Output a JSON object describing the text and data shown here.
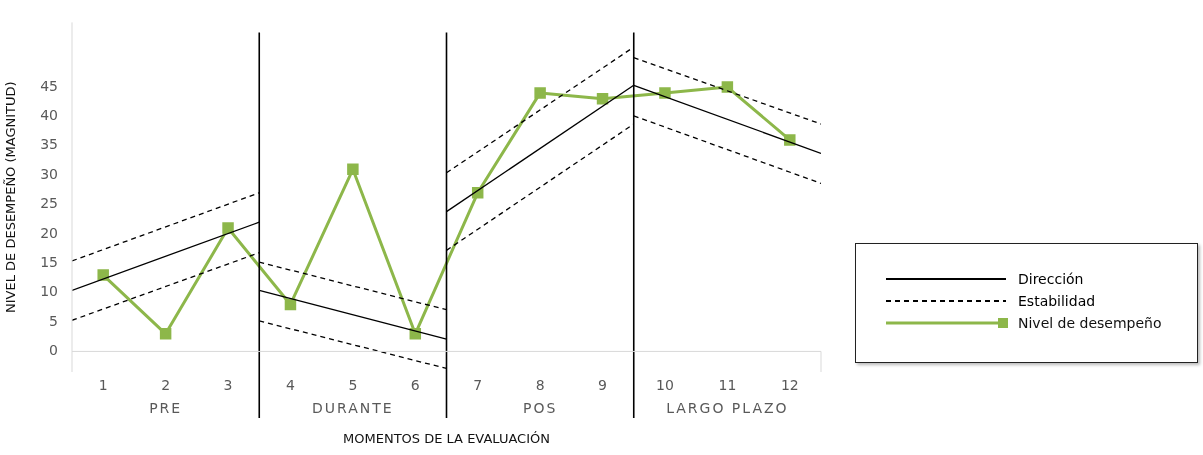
{
  "chart_data": {
    "type": "line",
    "xlabel": "MOMENTOS DE LA EVALUACIÓN",
    "ylabel": "NIVEL DE DESEMPEÑO (MAGNITUD)",
    "xlim": [
      0.5,
      12.5
    ],
    "xticks": [
      1,
      2,
      3,
      4,
      5,
      6,
      7,
      8,
      9,
      10,
      11,
      12
    ],
    "ylim": [
      -3.5,
      56
    ],
    "yticks": [
      0,
      5,
      10,
      15,
      20,
      25,
      30,
      35,
      40,
      45
    ],
    "grid": false,
    "legend": "right",
    "series": [
      {
        "name": "Dirección",
        "color": "#000000",
        "marker": "none",
        "line_style": "solid",
        "x": [
          0.5,
          3.5
        ],
        "values": [
          10.4,
          22
        ]
      },
      {
        "color": "#000000",
        "marker": "none",
        "line_style": "solid",
        "x": [
          3.5,
          6.5
        ],
        "values": [
          10.4,
          2.1
        ]
      },
      {
        "color": "#000000",
        "marker": "none",
        "line_style": "solid",
        "x": [
          6.5,
          9.5
        ],
        "values": [
          23.8,
          45.3
        ]
      },
      {
        "color": "#000000",
        "marker": "none",
        "line_style": "solid",
        "x": [
          9.5,
          12.5
        ],
        "values": [
          45.3,
          33.7
        ]
      },
      {
        "name": "Estabilidad",
        "color": "#000000",
        "marker": "none",
        "line_style": "dashed",
        "x": [
          0.5,
          3.5
        ],
        "values": [
          15.4,
          27
        ]
      },
      {
        "color": "#000000",
        "marker": "none",
        "line_style": "dashed",
        "x": [
          0.5,
          3.5
        ],
        "values": [
          5.3,
          16.8
        ]
      },
      {
        "color": "#000000",
        "marker": "none",
        "line_style": "dashed",
        "x": [
          3.5,
          6.5
        ],
        "values": [
          15.2,
          7.1
        ]
      },
      {
        "color": "#000000",
        "marker": "none",
        "line_style": "dashed",
        "x": [
          3.5,
          6.5
        ],
        "values": [
          5.2,
          -2.9
        ]
      },
      {
        "color": "#000000",
        "marker": "none",
        "line_style": "dashed",
        "x": [
          6.5,
          9.5
        ],
        "values": [
          30.4,
          51.8
        ]
      },
      {
        "color": "#000000",
        "marker": "none",
        "line_style": "dashed",
        "x": [
          6.5,
          9.5
        ],
        "values": [
          17.2,
          38.7
        ]
      },
      {
        "color": "#000000",
        "marker": "none",
        "line_style": "dashed",
        "x": [
          9.5,
          12.5
        ],
        "values": [
          50,
          38.7
        ]
      },
      {
        "color": "#000000",
        "marker": "none",
        "line_style": "dashed",
        "x": [
          9.5,
          12.5
        ],
        "values": [
          40.1,
          28.6
        ]
      },
      {
        "name": "Nivel de desempeño",
        "color": "#8db74a",
        "marker": "square",
        "line_style": "solid",
        "x": [
          1,
          2,
          3,
          4,
          5,
          6,
          7,
          8,
          9,
          10,
          11,
          12
        ],
        "values": [
          13,
          3,
          21,
          8,
          31,
          3,
          27,
          44,
          43,
          44,
          45,
          36
        ]
      }
    ],
    "ref_lines": [
      {
        "axis": "x",
        "value": 3.5,
        "color": "#000000"
      },
      {
        "axis": "x",
        "value": 6.5,
        "color": "#000000"
      },
      {
        "axis": "x",
        "value": 9.5,
        "color": "#000000"
      }
    ],
    "annotations": [
      "PRE",
      "DURANTE",
      "POS",
      "LARGO PLAZO"
    ]
  }
}
